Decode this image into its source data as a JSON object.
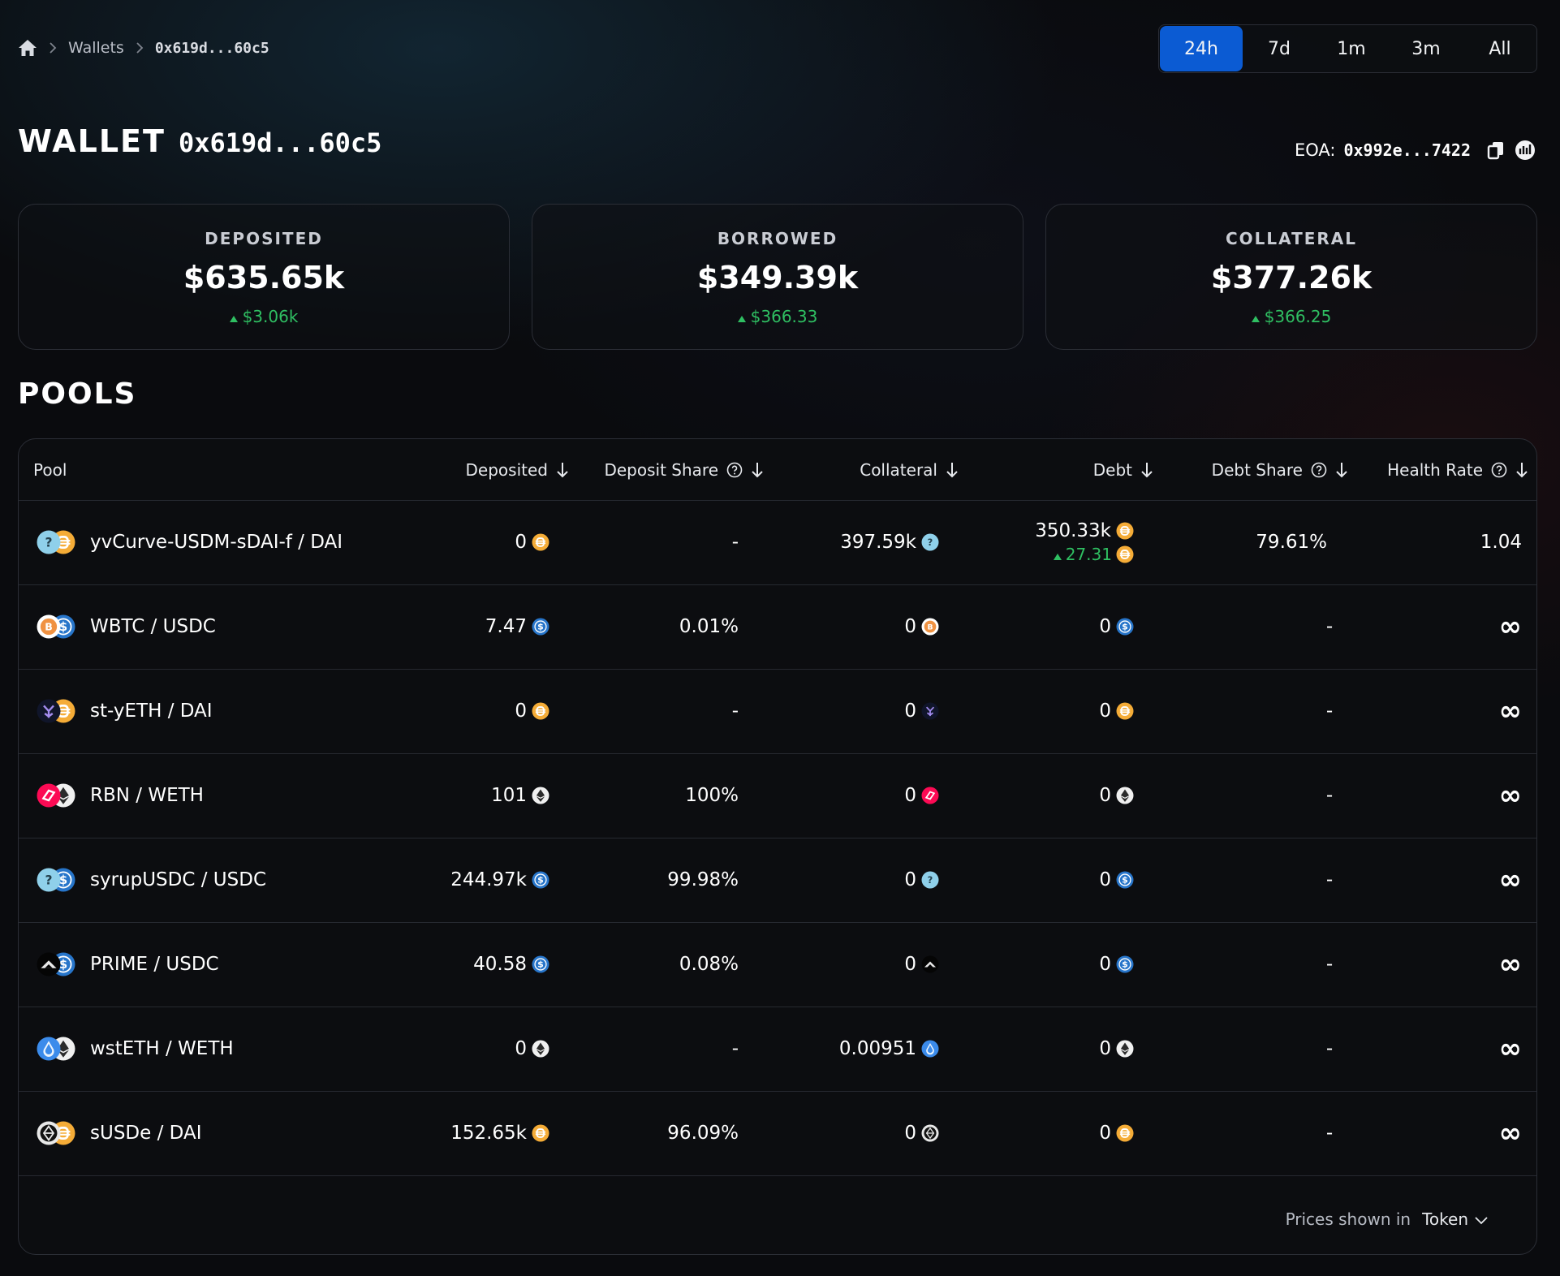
{
  "breadcrumb": {
    "home_icon": "home-icon",
    "items": [
      "Wallets",
      "0x619d...60c5"
    ]
  },
  "time_range": {
    "options": [
      "24h",
      "7d",
      "1m",
      "3m",
      "All"
    ],
    "selected": "24h",
    "accent": "#0b5bd3"
  },
  "header": {
    "title_word": "WALLET",
    "title_address": "0x619d...60c5",
    "eoa_label": "EOA:",
    "eoa_address": "0x992e...7422",
    "copy_icon": "copy-icon",
    "explorer_icon": "explorer-icon"
  },
  "stats": [
    {
      "label": "DEPOSITED",
      "value": "$635.65k",
      "change": "$3.06k"
    },
    {
      "label": "BORROWED",
      "value": "$349.39k",
      "change": "$366.33"
    },
    {
      "label": "COLLATERAL",
      "value": "$377.26k",
      "change": "$366.25"
    }
  ],
  "colors": {
    "positive": "#2fbf62",
    "background": "#0a0b0e",
    "border": "#2b2e36"
  },
  "pools": {
    "title": "POOLS",
    "columns": [
      {
        "label": "Pool"
      },
      {
        "label": "Deposited",
        "sort": true
      },
      {
        "label": "Deposit Share",
        "help": true,
        "sort": true
      },
      {
        "label": "Collateral",
        "sort": true
      },
      {
        "label": "Debt",
        "sort": true
      },
      {
        "label": "Debt Share",
        "help": true,
        "sort": true
      },
      {
        "label": "Health Rate",
        "help": true,
        "sort": true
      }
    ],
    "rows": [
      {
        "pool": "yvCurve-USDM-sDAI-f / DAI",
        "icons": [
          "unknown-token-icon",
          "dai-icon"
        ],
        "deposited": "0",
        "deposited_icon": "dai-icon",
        "deposit_share": "-",
        "collateral": "397.59k",
        "collateral_icon": "unknown-token-icon",
        "debt": "350.33k",
        "debt_icon": "dai-icon",
        "debt_change": "27.31",
        "debt_change_icon": "dai-icon",
        "debt_share": "79.61%",
        "health_rate": "1.04"
      },
      {
        "pool": "WBTC / USDC",
        "icons": [
          "wbtc-icon",
          "usdc-icon"
        ],
        "deposited": "7.47",
        "deposited_icon": "usdc-icon",
        "deposit_share": "0.01%",
        "collateral": "0",
        "collateral_icon": "wbtc-icon",
        "debt": "0",
        "debt_icon": "usdc-icon",
        "debt_share": "-",
        "health_rate": "∞"
      },
      {
        "pool": "st-yETH / DAI",
        "icons": [
          "st-yeth-icon",
          "dai-icon"
        ],
        "deposited": "0",
        "deposited_icon": "dai-icon",
        "deposit_share": "-",
        "collateral": "0",
        "collateral_icon": "st-yeth-icon",
        "debt": "0",
        "debt_icon": "dai-icon",
        "debt_share": "-",
        "health_rate": "∞"
      },
      {
        "pool": "RBN / WETH",
        "icons": [
          "rbn-icon",
          "weth-icon"
        ],
        "deposited": "101",
        "deposited_icon": "weth-icon",
        "deposit_share": "100%",
        "collateral": "0",
        "collateral_icon": "rbn-icon",
        "debt": "0",
        "debt_icon": "weth-icon",
        "debt_share": "-",
        "health_rate": "∞"
      },
      {
        "pool": "syrupUSDC / USDC",
        "icons": [
          "unknown-token-icon",
          "usdc-icon"
        ],
        "deposited": "244.97k",
        "deposited_icon": "usdc-icon",
        "deposit_share": "99.98%",
        "collateral": "0",
        "collateral_icon": "unknown-token-icon",
        "debt": "0",
        "debt_icon": "usdc-icon",
        "debt_share": "-",
        "health_rate": "∞"
      },
      {
        "pool": "PRIME / USDC",
        "icons": [
          "prime-icon",
          "usdc-icon"
        ],
        "deposited": "40.58",
        "deposited_icon": "usdc-icon",
        "deposit_share": "0.08%",
        "collateral": "0",
        "collateral_icon": "prime-icon",
        "debt": "0",
        "debt_icon": "usdc-icon",
        "debt_share": "-",
        "health_rate": "∞"
      },
      {
        "pool": "wstETH / WETH",
        "icons": [
          "wsteth-icon",
          "weth-icon"
        ],
        "deposited": "0",
        "deposited_icon": "weth-icon",
        "deposit_share": "-",
        "collateral": "0.00951",
        "collateral_icon": "wsteth-icon",
        "debt": "0",
        "debt_icon": "weth-icon",
        "debt_share": "-",
        "health_rate": "∞"
      },
      {
        "pool": "sUSDe / DAI",
        "icons": [
          "susde-icon",
          "dai-icon"
        ],
        "deposited": "152.65k",
        "deposited_icon": "dai-icon",
        "deposit_share": "96.09%",
        "collateral": "0",
        "collateral_icon": "susde-icon",
        "debt": "0",
        "debt_icon": "dai-icon",
        "debt_share": "-",
        "health_rate": "∞"
      }
    ],
    "footer_label": "Prices shown in",
    "footer_value": "Token"
  }
}
